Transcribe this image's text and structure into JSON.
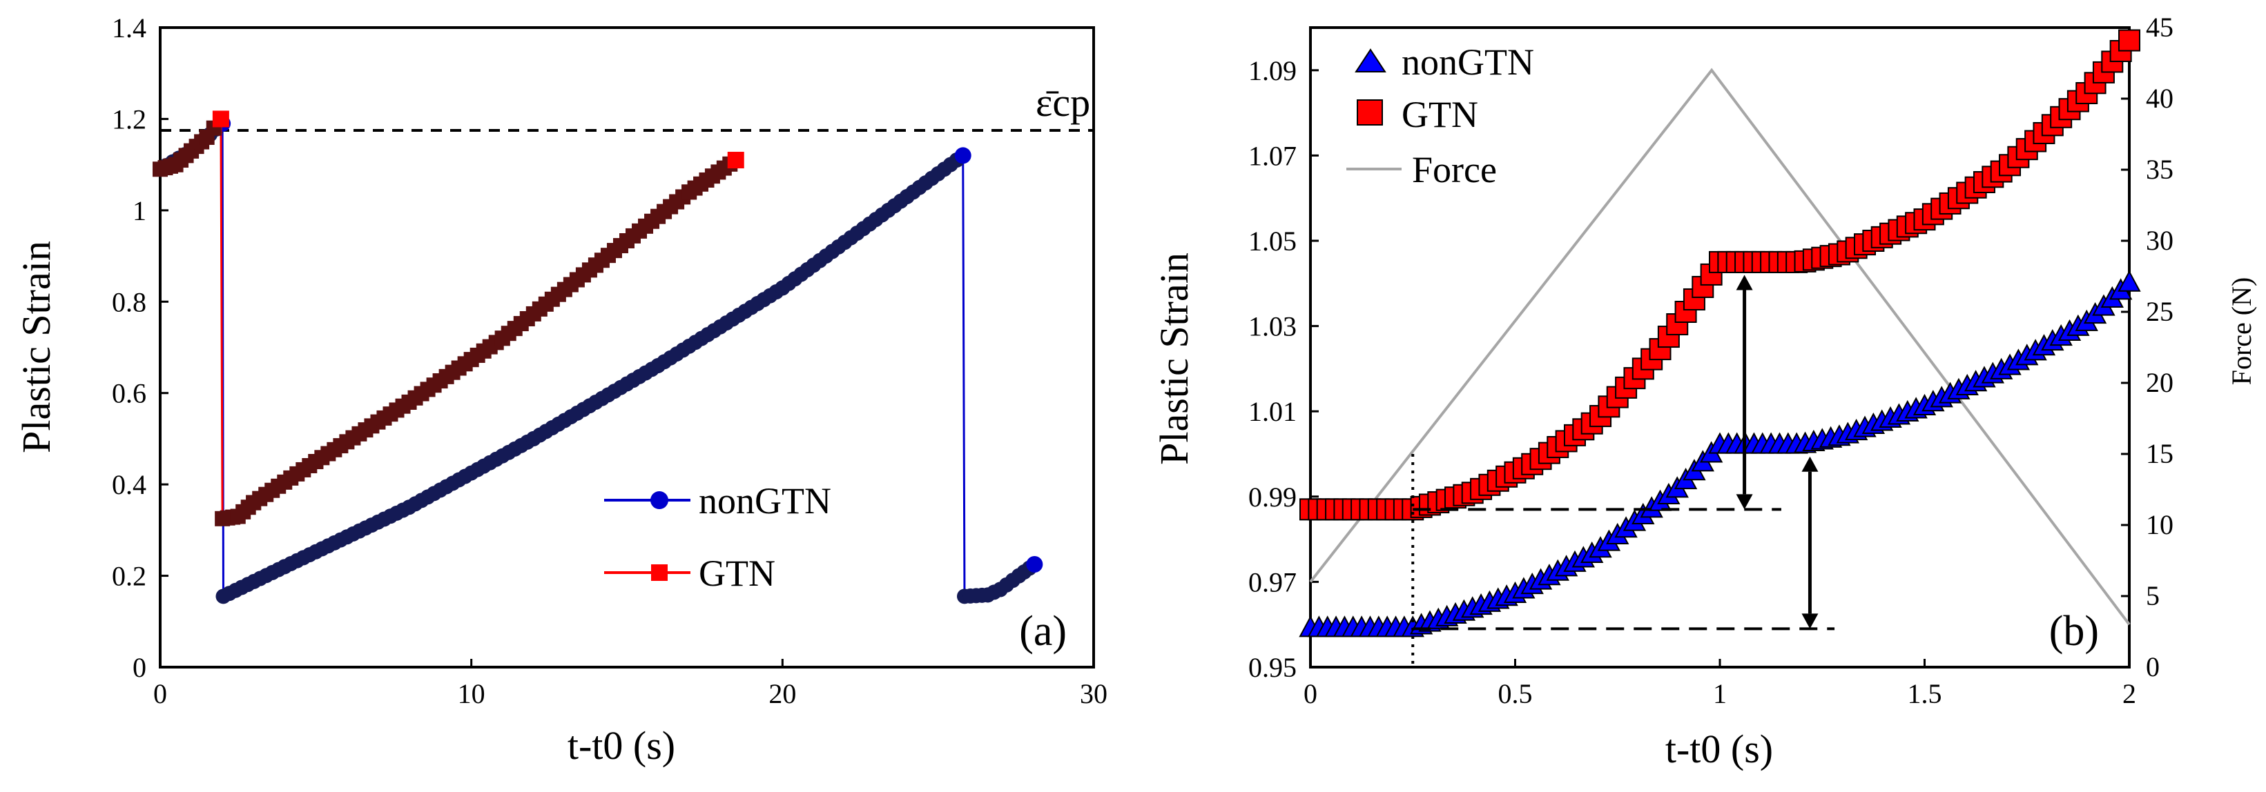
{
  "chart_data": [
    {
      "type": "line",
      "panel_label": "(a)",
      "xlabel": "t-t0 (s)",
      "ylabel": "Plastic Strain",
      "xlim": [
        0,
        30
      ],
      "ylim": [
        0,
        1.4
      ],
      "xticks": [
        "0",
        "10",
        "20",
        "30"
      ],
      "yticks": [
        "0",
        "0.2",
        "0.4",
        "0.6",
        "0.8",
        "1",
        "1.2",
        "1.4"
      ],
      "annotation": "ε̄cp",
      "critical_strain": 1.175,
      "series": [
        {
          "name": "nonGTN",
          "color": "#0000cc",
          "fill": "#141a55",
          "marker": "circle",
          "x": [
            0,
            1,
            2,
            2.03,
            4,
            8,
            12,
            16,
            20,
            24,
            25.8,
            25.85,
            26.6,
            27,
            27.6,
            28.1
          ],
          "y": [
            1.09,
            1.13,
            1.19,
            0.155,
            0.22,
            0.35,
            0.5,
            0.66,
            0.83,
            1.03,
            1.12,
            0.155,
            0.158,
            0.17,
            0.2,
            0.225
          ]
        },
        {
          "name": "GTN",
          "color": "#ff0000",
          "fill": "#5a1010",
          "marker": "square",
          "x": [
            0,
            0.5,
            1,
            1.5,
            1.95,
            2.0,
            2.5,
            3,
            5,
            8,
            11,
            14,
            17,
            18.5
          ],
          "y": [
            1.09,
            1.1,
            1.13,
            1.16,
            1.2,
            0.325,
            0.33,
            0.36,
            0.45,
            0.58,
            0.72,
            0.88,
            1.04,
            1.11
          ]
        }
      ]
    },
    {
      "type": "line",
      "panel_label": "(b)",
      "xlabel": "t-t0 (s)",
      "ylabel": "Plastic Strain",
      "ylabel_right": "Force (N)",
      "xlim": [
        0,
        2
      ],
      "ylim": [
        0.95,
        1.1
      ],
      "ylim_right": [
        0,
        45
      ],
      "xticks": [
        "0",
        "0.5",
        "1",
        "1.5",
        "2"
      ],
      "yticks": [
        "0.95",
        "0.97",
        "0.99",
        "1.01",
        "1.03",
        "1.05",
        "1.07",
        "1.09"
      ],
      "yticks_right": [
        "0",
        "5",
        "10",
        "15",
        "20",
        "25",
        "30",
        "35",
        "40",
        "45"
      ],
      "series": [
        {
          "name": "nonGTN",
          "color": "#0000ff",
          "marker": "triangle",
          "x": [
            0,
            0.25,
            0.35,
            0.5,
            0.7,
            0.9,
            0.98,
            1.0,
            1.1,
            1.2,
            1.3,
            1.5,
            1.7,
            1.9,
            2.0
          ],
          "y": [
            0.959,
            0.959,
            0.962,
            0.967,
            0.977,
            0.992,
            1.0,
            1.002,
            1.002,
            1.002,
            1.004,
            1.011,
            1.02,
            1.031,
            1.04
          ]
        },
        {
          "name": "GTN",
          "color": "#ff0000",
          "marker": "square",
          "x": [
            0,
            0.25,
            0.4,
            0.55,
            0.7,
            0.85,
            0.95,
            1.0,
            1.1,
            1.2,
            1.3,
            1.5,
            1.7,
            1.9,
            2.0
          ],
          "y": [
            0.987,
            0.987,
            0.991,
            0.998,
            1.008,
            1.024,
            1.038,
            1.045,
            1.045,
            1.045,
            1.047,
            1.055,
            1.067,
            1.085,
            1.097
          ]
        },
        {
          "name": "Force",
          "color": "#a6a6a6",
          "axis": "right",
          "x": [
            0,
            0.98,
            2.0
          ],
          "y": [
            6,
            42,
            3
          ]
        }
      ]
    }
  ]
}
